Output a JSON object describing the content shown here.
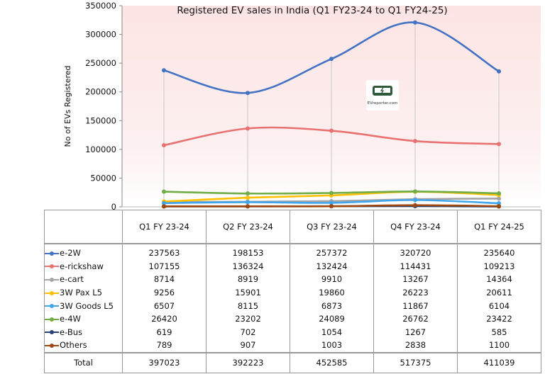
{
  "chart_data": {
    "type": "line",
    "title": "Registered  EV sales in India (Q1 FY23-24 to Q1 FY24-25)",
    "ylabel": "No of EVs Registered",
    "xlabel": "",
    "ylim": [
      0,
      350000
    ],
    "yticks": [
      "0",
      "50000",
      "100000",
      "150000",
      "200000",
      "250000",
      "300000",
      "350000"
    ],
    "categories": [
      "Q1 FY 23-24",
      "Q2 FY 23-24",
      "Q3 FY 23-24",
      "Q4 FY 23-24",
      "Q1 FY 24-25"
    ],
    "series": [
      {
        "name": "e-2W",
        "color": "#4472c4",
        "values": [
          237563,
          198153,
          257372,
          320720,
          235640
        ]
      },
      {
        "name": "e-rickshaw",
        "color": "#e97171",
        "values": [
          107155,
          136324,
          132424,
          114431,
          109213
        ]
      },
      {
        "name": "e-cart",
        "color": "#a5a5a5",
        "values": [
          8714,
          8919,
          9910,
          13267,
          14364
        ]
      },
      {
        "name": "3W Pax L5",
        "color": "#ffc000",
        "values": [
          9256,
          15901,
          19860,
          26223,
          20611
        ]
      },
      {
        "name": "3W Goods L5",
        "color": "#3fa6ee",
        "values": [
          6507,
          8115,
          6873,
          11867,
          6104
        ]
      },
      {
        "name": "e-4W",
        "color": "#70ad47",
        "values": [
          26420,
          23202,
          24089,
          26762,
          23422
        ]
      },
      {
        "name": "e-Bus",
        "color": "#264478",
        "values": [
          619,
          702,
          1054,
          1267,
          585
        ]
      },
      {
        "name": "Others",
        "color": "#9e480e",
        "values": [
          789,
          907,
          1003,
          2838,
          1100
        ]
      }
    ],
    "total_label": "Total",
    "totals": [
      397023,
      392223,
      452585,
      517375,
      411039
    ],
    "grid": false,
    "legend": "data-table"
  },
  "watermark": {
    "text": "EVreporter.com"
  }
}
